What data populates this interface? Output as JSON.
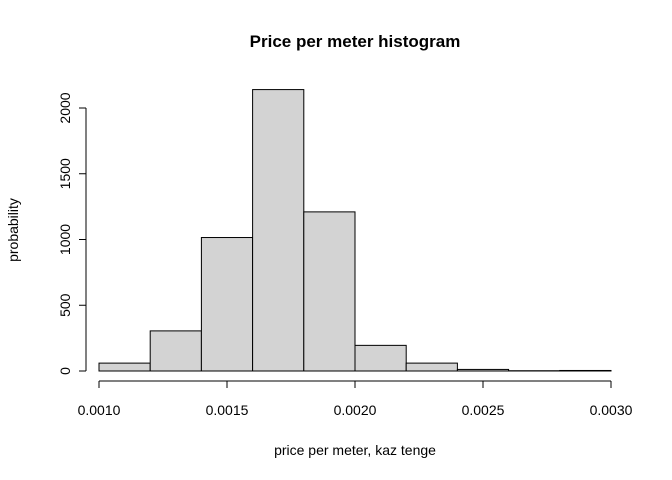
{
  "chart_data": {
    "type": "bar",
    "title": "Price per meter histogram",
    "xlabel": "price per meter, kaz tenge",
    "ylabel": "probability",
    "bins": [
      {
        "start": 0.001,
        "end": 0.0012,
        "value": 60
      },
      {
        "start": 0.0012,
        "end": 0.0014,
        "value": 305
      },
      {
        "start": 0.0014,
        "end": 0.0016,
        "value": 1015
      },
      {
        "start": 0.0016,
        "end": 0.0018,
        "value": 2140
      },
      {
        "start": 0.0018,
        "end": 0.002,
        "value": 1210
      },
      {
        "start": 0.002,
        "end": 0.0022,
        "value": 195
      },
      {
        "start": 0.0022,
        "end": 0.0024,
        "value": 60
      },
      {
        "start": 0.0024,
        "end": 0.0026,
        "value": 12
      },
      {
        "start": 0.0026,
        "end": 0.0028,
        "value": 2
      },
      {
        "start": 0.0028,
        "end": 0.003,
        "value": 4
      }
    ],
    "xlim": [
      0.001,
      0.003
    ],
    "ylim": [
      0,
      2000
    ],
    "xticks": [
      "0.0010",
      "0.0015",
      "0.0020",
      "0.0025",
      "0.0030"
    ],
    "yticks": [
      "0",
      "500",
      "1000",
      "1500",
      "2000"
    ],
    "bar_fill": "#d3d3d3",
    "bar_stroke": "#000000",
    "grid": false,
    "legend": "none"
  }
}
